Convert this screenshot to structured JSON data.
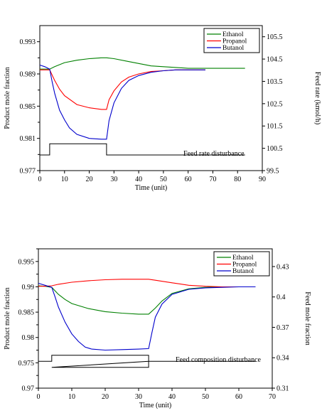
{
  "chart_data": [
    {
      "type": "line",
      "xlabel": "Time (unit)",
      "ylabel": "Product mole fraction",
      "y2label": "Feed rate (kmol/h)",
      "xlim": [
        0,
        90
      ],
      "ylim": [
        0.977,
        0.995
      ],
      "y2lim": [
        99.5,
        106
      ],
      "xticks": [
        "0",
        "10",
        "20",
        "30",
        "40",
        "50",
        "60",
        "70",
        "80",
        "90"
      ],
      "yticks": [
        "0.977",
        "0.981",
        "0.985",
        "0.989",
        "0.993"
      ],
      "y2ticks": [
        "99.5",
        "100.5",
        "101.5",
        "102.5",
        "103.5",
        "104.5",
        "105.5"
      ],
      "legend_position": "top-right",
      "series": [
        {
          "name": "Ethanol",
          "color": "#008000",
          "x": [
            0,
            2,
            4,
            6,
            10,
            15,
            20,
            25,
            27,
            30,
            35,
            40,
            45,
            50,
            55,
            60,
            65,
            70,
            75,
            80,
            83
          ],
          "y": [
            0.9896,
            0.9896,
            0.9896,
            0.9899,
            0.9904,
            0.9907,
            0.9909,
            0.991,
            0.991,
            0.9909,
            0.9906,
            0.9903,
            0.99,
            0.9899,
            0.9898,
            0.9897,
            0.9897,
            0.9897,
            0.9897,
            0.9897,
            0.9897
          ]
        },
        {
          "name": "Propanol",
          "color": "#ff0000",
          "x": [
            0,
            2,
            4,
            6,
            8,
            10,
            15,
            20,
            25,
            27,
            28,
            30,
            33,
            36,
            40,
            45,
            50,
            55,
            60,
            67
          ],
          "y": [
            0.9895,
            0.9895,
            0.9895,
            0.9882,
            0.9871,
            0.9863,
            0.9852,
            0.9848,
            0.9846,
            0.9846,
            0.9858,
            0.9869,
            0.988,
            0.9886,
            0.989,
            0.9893,
            0.9894,
            0.9895,
            0.9895,
            0.9895
          ]
        },
        {
          "name": "Butanol",
          "color": "#0000cc",
          "x": [
            0,
            2,
            4,
            5,
            6,
            8,
            10,
            12,
            15,
            20,
            25,
            27,
            28,
            30,
            33,
            36,
            40,
            45,
            50,
            55,
            60,
            67
          ],
          "y": [
            0.9901,
            0.9899,
            0.9896,
            0.988,
            0.9866,
            0.9845,
            0.9833,
            0.9823,
            0.9815,
            0.981,
            0.9809,
            0.9809,
            0.9832,
            0.9854,
            0.9872,
            0.9882,
            0.9888,
            0.9892,
            0.9894,
            0.9895,
            0.9895,
            0.9895
          ]
        }
      ],
      "disturbance": {
        "label": "Feed rate disturbance",
        "axis": "y2",
        "x": [
          0,
          4,
          4,
          27,
          27,
          83
        ],
        "y": [
          100.2,
          100.2,
          100.7,
          100.7,
          100.2,
          100.2
        ]
      }
    },
    {
      "type": "line",
      "xlabel": "Time (unit)",
      "ylabel": "Product mole fraction",
      "y2label": "Feed mole fraction",
      "xlim": [
        0,
        70
      ],
      "ylim": [
        0.97,
        0.9975
      ],
      "y2lim": [
        0.31,
        0.4475
      ],
      "xticks": [
        "0",
        "10",
        "20",
        "30",
        "40",
        "50",
        "60",
        "70"
      ],
      "yticks": [
        "0.97",
        "0.975",
        "0.98",
        "0.985",
        "0.99",
        "0.995"
      ],
      "y2ticks": [
        "0.31",
        "0.34",
        "0.37",
        "0.4",
        "0.43"
      ],
      "legend_position": "top-right",
      "series": [
        {
          "name": "Ethanol",
          "color": "#008000",
          "x": [
            0,
            2,
            4,
            6,
            8,
            10,
            15,
            20,
            25,
            30,
            33,
            35,
            37,
            40,
            45,
            50,
            55,
            60,
            65
          ],
          "y": [
            0.9902,
            0.9901,
            0.9899,
            0.9885,
            0.9875,
            0.9867,
            0.9857,
            0.9851,
            0.9848,
            0.9846,
            0.9846,
            0.9858,
            0.9872,
            0.9887,
            0.9896,
            0.9899,
            0.99,
            0.99,
            0.99
          ]
        },
        {
          "name": "Propanol",
          "color": "#ff0000",
          "x": [
            0,
            2,
            4,
            6,
            10,
            15,
            20,
            25,
            30,
            33,
            35,
            40,
            45,
            50,
            55,
            60,
            65
          ],
          "y": [
            0.9901,
            0.9901,
            0.9902,
            0.9905,
            0.9909,
            0.9912,
            0.9914,
            0.9915,
            0.9915,
            0.9915,
            0.9913,
            0.9908,
            0.9903,
            0.9901,
            0.99,
            0.99,
            0.99
          ]
        },
        {
          "name": "Butanol",
          "color": "#0000cc",
          "x": [
            0,
            2,
            4,
            5,
            6,
            8,
            10,
            12,
            14,
            16,
            20,
            25,
            30,
            33,
            34,
            35,
            37,
            40,
            45,
            50,
            55,
            60,
            65
          ],
          "y": [
            0.9907,
            0.9903,
            0.9899,
            0.988,
            0.986,
            0.983,
            0.9807,
            0.9792,
            0.9781,
            0.9777,
            0.9775,
            0.9776,
            0.9777,
            0.9778,
            0.981,
            0.984,
            0.9866,
            0.9885,
            0.9895,
            0.9898,
            0.9899,
            0.99,
            0.99
          ]
        }
      ],
      "disturbance": {
        "label": "Feed composition disturbance",
        "axis": "y2",
        "x": [
          0,
          4,
          4,
          33,
          33,
          4,
          33,
          65
        ],
        "y": [
          0.3365,
          0.3365,
          0.3425,
          0.3425,
          0.3305,
          0.3305,
          0.3365,
          0.3365
        ]
      }
    }
  ]
}
